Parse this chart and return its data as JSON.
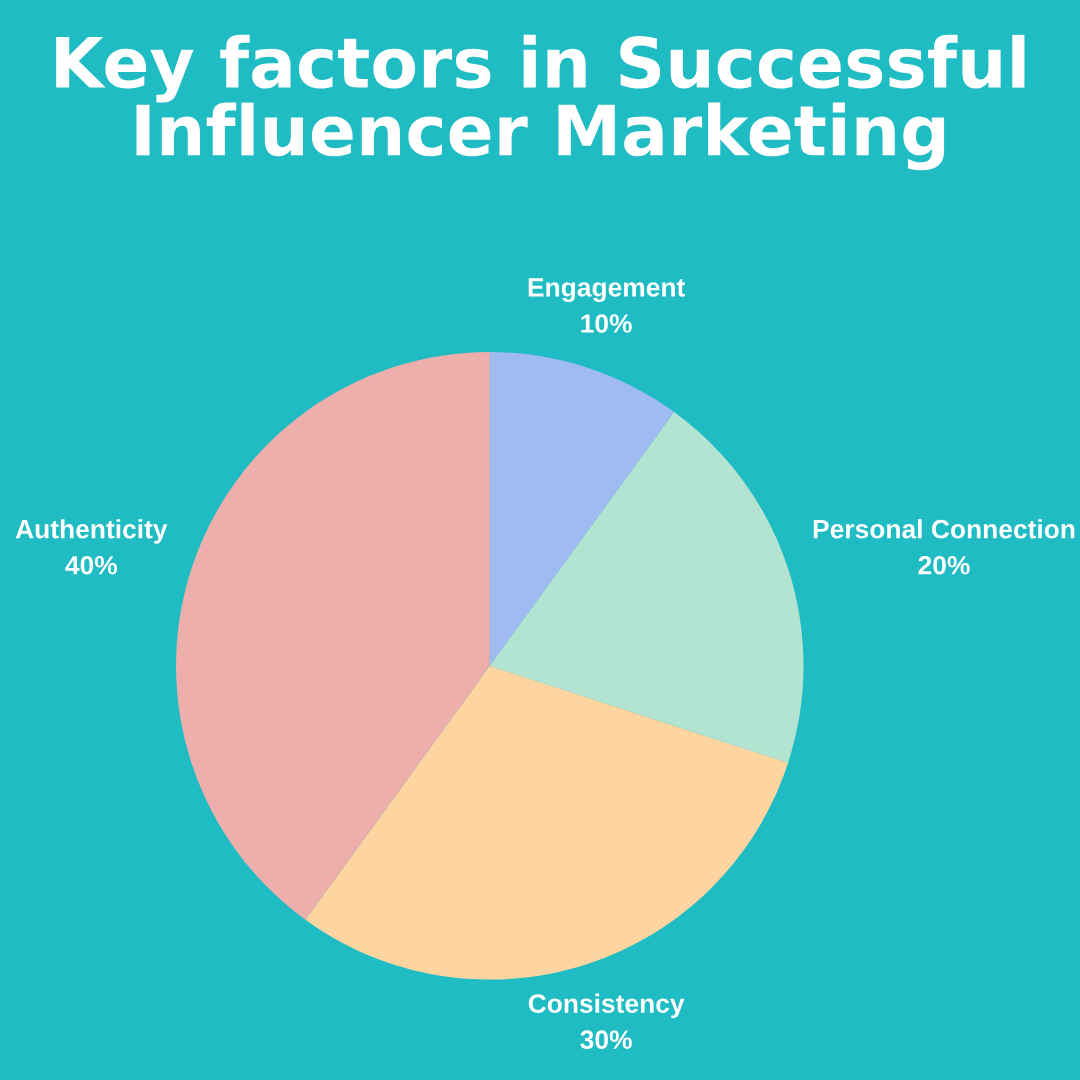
{
  "chart_data": {
    "type": "pie",
    "title": "Key factors in Successful\nInfluencer Marketing",
    "categories": [
      "Engagement",
      "Personal Connection",
      "Consistency",
      "Authenticity"
    ],
    "values": [
      10,
      20,
      30,
      40
    ],
    "value_labels": [
      "10%",
      "20%",
      "30%",
      "40%"
    ],
    "colors": [
      "#a0baf2",
      "#b3e4d1",
      "#fed5a0",
      "#eeaeac"
    ]
  }
}
